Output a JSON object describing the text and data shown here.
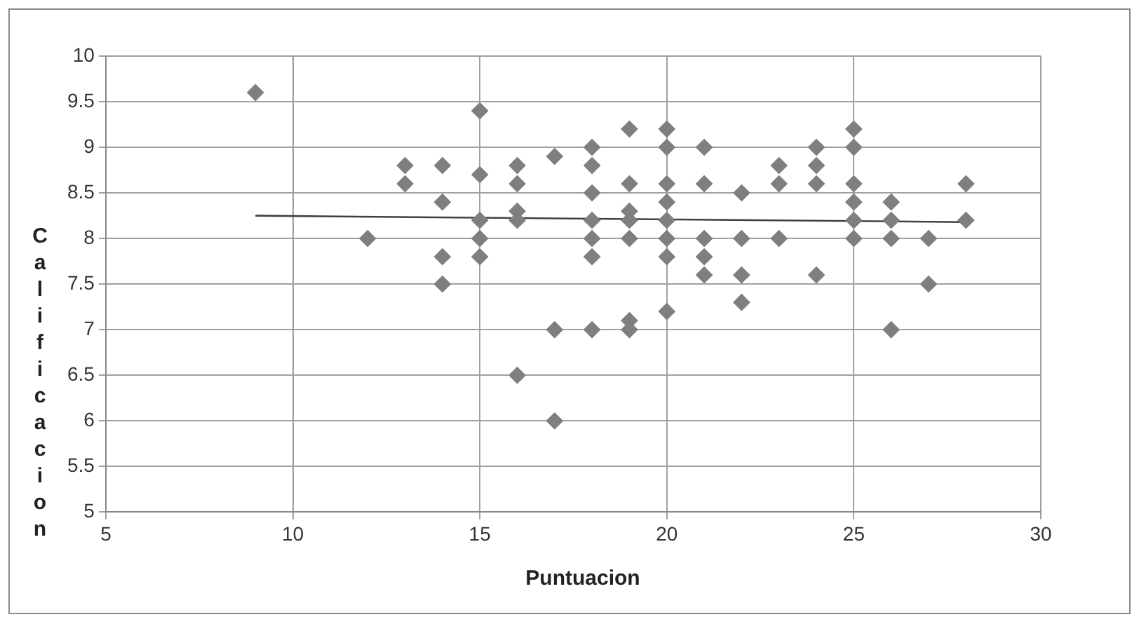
{
  "chart_data": {
    "type": "scatter",
    "xlabel": "Puntuacion",
    "ylabel": "Calificacion",
    "xlim": [
      5,
      30
    ],
    "xticks": [
      5,
      10,
      15,
      20,
      25,
      30
    ],
    "ylim": [
      5,
      10
    ],
    "yticks": [
      5,
      5.5,
      6,
      6.5,
      7,
      7.5,
      8,
      8.5,
      9,
      9.5,
      10
    ],
    "grid": true,
    "legend": false,
    "marker": "diamond",
    "series": [
      {
        "color": "#7f7f7f",
        "x": [
          9,
          12,
          13,
          13,
          14,
          14,
          14,
          14,
          15,
          15,
          15,
          15,
          15,
          16,
          16,
          16,
          16,
          16,
          17,
          17,
          17,
          18,
          18,
          18,
          18,
          18,
          18,
          18,
          19,
          19,
          19,
          19,
          19,
          19,
          19,
          20,
          20,
          20,
          20,
          20,
          20,
          20,
          20,
          21,
          21,
          21,
          21,
          21,
          22,
          22,
          22,
          22,
          23,
          23,
          23,
          24,
          24,
          24,
          24,
          25,
          25,
          25,
          25,
          25,
          25,
          26,
          26,
          26,
          26,
          27,
          27,
          28,
          28
        ],
        "values": [
          9.6,
          8.0,
          8.8,
          8.6,
          8.8,
          8.4,
          7.8,
          7.5,
          9.4,
          8.7,
          8.2,
          8.0,
          7.8,
          8.8,
          8.6,
          8.3,
          8.2,
          6.5,
          8.9,
          7.0,
          6.0,
          9.0,
          8.8,
          8.5,
          8.2,
          8.0,
          7.8,
          7.0,
          9.2,
          8.6,
          8.3,
          8.2,
          8.0,
          7.1,
          7.0,
          9.2,
          9.0,
          8.6,
          8.4,
          8.2,
          8.0,
          7.8,
          7.2,
          9.0,
          8.6,
          8.0,
          7.8,
          7.6,
          8.5,
          8.0,
          7.6,
          7.3,
          8.8,
          8.6,
          8.0,
          9.0,
          8.8,
          8.6,
          7.6,
          9.2,
          9.0,
          8.6,
          8.4,
          8.2,
          8.0,
          8.4,
          8.2,
          8.0,
          7.0,
          8.0,
          7.5,
          8.6,
          8.2
        ]
      },
      {
        "type": "line",
        "color": "#404040",
        "marker": "none",
        "x": [
          9,
          28
        ],
        "values": [
          8.25,
          8.18
        ]
      }
    ]
  }
}
